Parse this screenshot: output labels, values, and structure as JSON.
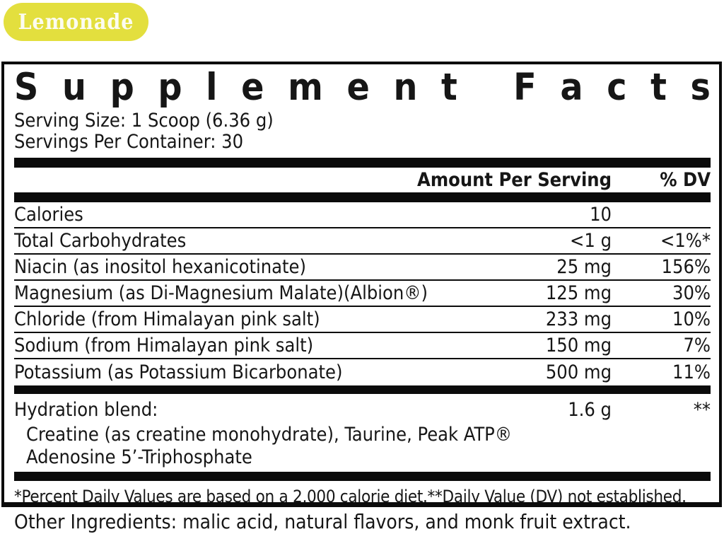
{
  "badge": {
    "label": "Lemonade",
    "bg_color": "#e3df3e",
    "text_color": "#fcfcf0"
  },
  "panel": {
    "title": "Supplement Facts",
    "serving_size": "Serving Size: 1 Scoop (6.36 g)",
    "servings_per_container": "Servings Per Container: 30"
  },
  "table": {
    "columns": {
      "amount": "Amount Per Serving",
      "dv": "% DV"
    },
    "rows": [
      {
        "name": "Calories",
        "amount": "10",
        "dv": ""
      },
      {
        "name": "Total Carbohydrates",
        "amount": "<1 g",
        "dv": "<1%*"
      },
      {
        "name": "Niacin (as inositol hexanicotinate)",
        "amount": "25 mg",
        "dv": "156%"
      },
      {
        "name": "Magnesium (as Di-Magnesium Malate)(Albion®)",
        "amount": "125 mg",
        "dv": "30%"
      },
      {
        "name": "Chloride (from Himalayan pink salt)",
        "amount": "233 mg",
        "dv": "10%"
      },
      {
        "name": "Sodium (from Himalayan pink salt)",
        "amount": "150 mg",
        "dv": "7%"
      },
      {
        "name": "Potassium (as Potassium Bicarbonate)",
        "amount": "500 mg",
        "dv": "11%"
      }
    ],
    "blend": {
      "name": "Hydration blend:",
      "amount": "1.6 g",
      "dv": "**",
      "ingredients": [
        "Creatine (as creatine monohydrate), Taurine, Peak ATP®",
        "Adenosine 5’-Triphosphate"
      ]
    }
  },
  "footnote": "*Percent Daily Values are based on a 2,000 calorie diet.**Daily Value (DV) not established.",
  "other_ingredients": "Other Ingredients: malic acid, natural flavors, and monk fruit extract.",
  "colors": {
    "ink": "#161616",
    "rule": "#0b0b0b"
  }
}
